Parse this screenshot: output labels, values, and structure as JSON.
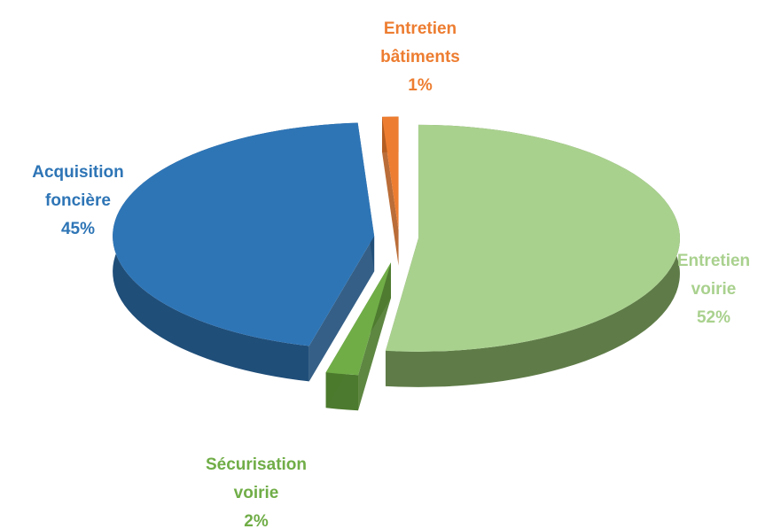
{
  "chart_data": {
    "type": "pie",
    "title": "",
    "slices": [
      {
        "name_lines": [
          "Entretien",
          "voirie"
        ],
        "pct_label": "52%",
        "value": 52,
        "color": "#a9d18e",
        "side_color": "#5f7c48",
        "label_color": "#a9d18e"
      },
      {
        "name_lines": [
          "Sécurisation",
          "voirie"
        ],
        "pct_label": "2%",
        "value": 2,
        "color": "#70ad47",
        "side_color": "#4c7a2e",
        "label_color": "#70ad47"
      },
      {
        "name_lines": [
          "Acquisition",
          "foncière"
        ],
        "pct_label": "45%",
        "value": 45,
        "color": "#2e75b6",
        "side_color": "#1f4e79",
        "label_color": "#2e75b6"
      },
      {
        "name_lines": [
          "Entretien",
          "bâtiments"
        ],
        "pct_label": "1%",
        "value": 1,
        "color": "#ed7d31",
        "side_color": "#b35d22",
        "label_color": "#ed7d31"
      }
    ],
    "style": "3d-exploded"
  }
}
